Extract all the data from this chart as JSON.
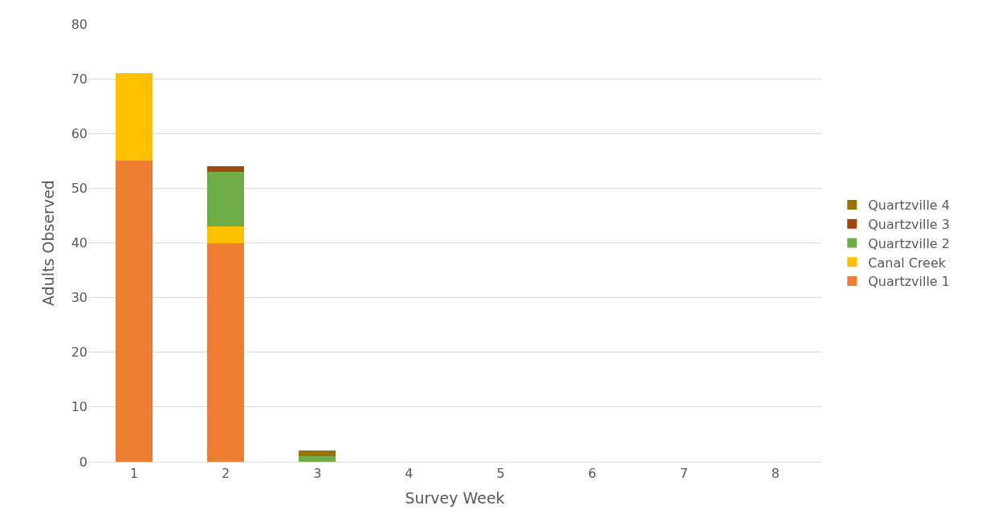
{
  "chart_data": {
    "type": "bar",
    "stacked": true,
    "xlabel": "Survey Week",
    "ylabel": "Adults Observed",
    "categories": [
      "1",
      "2",
      "3",
      "4",
      "5",
      "6",
      "7",
      "8"
    ],
    "series": [
      {
        "name": "Quartzville 1",
        "color": "#ed7d31",
        "values": [
          55,
          40,
          0,
          0,
          0,
          0,
          0,
          0
        ]
      },
      {
        "name": "Canal Creek",
        "color": "#ffc000",
        "values": [
          16,
          3,
          0,
          0,
          0,
          0,
          0,
          0
        ]
      },
      {
        "name": "Quartzville 2",
        "color": "#70ad47",
        "values": [
          0,
          10,
          1,
          0,
          0,
          0,
          0,
          0
        ]
      },
      {
        "name": "Quartzville 3",
        "color": "#9e480e",
        "values": [
          0,
          1,
          0,
          0,
          0,
          0,
          0,
          0
        ]
      },
      {
        "name": "Quartzville 4",
        "color": "#997300",
        "values": [
          0,
          0,
          1,
          0,
          0,
          0,
          0,
          0
        ]
      }
    ],
    "ylim": [
      0,
      80
    ],
    "yticks": [
      0,
      10,
      20,
      30,
      40,
      50,
      60,
      70,
      80
    ],
    "grid": "y",
    "legend": "right"
  }
}
